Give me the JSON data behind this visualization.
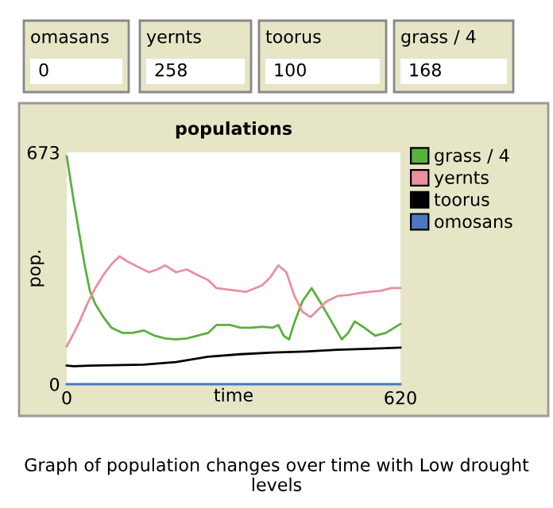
{
  "chart_data": {
    "type": "line",
    "title": "populations",
    "xlabel": "time",
    "ylabel": "pop.",
    "xlim": [
      0,
      620
    ],
    "xticks": [
      0,
      620
    ],
    "ylim": [
      0,
      673
    ],
    "yticks": [
      0,
      673
    ],
    "grid": false,
    "legend": "top right",
    "marker": "none",
    "line_style": "solid",
    "series": [
      {
        "name": "grass / 4",
        "color": "#59b03c",
        "x": [
          0,
          13,
          23,
          33,
          43,
          53,
          68,
          83,
          103,
          123,
          143,
          163,
          183,
          203,
          223,
          243,
          263,
          278,
          303,
          323,
          343,
          363,
          383,
          393,
          403,
          413,
          423,
          438,
          455,
          473,
          493,
          511,
          523,
          535,
          553,
          573,
          593,
          620
        ],
        "values": [
          662,
          532,
          440,
          348,
          271,
          233,
          195,
          164,
          149,
          149,
          156,
          141,
          133,
          130,
          133,
          141,
          149,
          172,
          172,
          164,
          164,
          167,
          164,
          172,
          141,
          130,
          179,
          241,
          279,
          233,
          179,
          130,
          149,
          182,
          164,
          141,
          149,
          175
        ]
      },
      {
        "name": "yernts",
        "color": "#e8909c",
        "x": [
          0,
          8,
          23,
          38,
          53,
          68,
          83,
          98,
          113,
          133,
          153,
          168,
          183,
          203,
          223,
          243,
          263,
          278,
          303,
          333,
          363,
          378,
          393,
          408,
          423,
          438,
          453,
          468,
          483,
          503,
          523,
          543,
          563,
          583,
          603,
          620
        ],
        "values": [
          110,
          133,
          179,
          233,
          279,
          317,
          348,
          371,
          356,
          340,
          325,
          333,
          345,
          325,
          333,
          317,
          302,
          279,
          274,
          268,
          287,
          310,
          345,
          325,
          256,
          210,
          195,
          218,
          241,
          256,
          259,
          264,
          268,
          271,
          279,
          279
        ]
      },
      {
        "name": "toorus",
        "color": "#000000",
        "x": [
          0,
          13,
          43,
          143,
          203,
          263,
          323,
          383,
          443,
          503,
          563,
          620
        ],
        "values": [
          54,
          52,
          54,
          57,
          64,
          80,
          87,
          92,
          95,
          100,
          103,
          106
        ]
      },
      {
        "name": "omosans",
        "color": "#4a78c2",
        "x": [
          0,
          620
        ],
        "values": [
          0,
          0
        ]
      }
    ],
    "annotations": [
      "omasans",
      "0",
      "yernts",
      "258",
      "toorus",
      "100",
      "grass / 4",
      "168",
      "Graph of population changes over time with Low drought levels"
    ]
  }
}
